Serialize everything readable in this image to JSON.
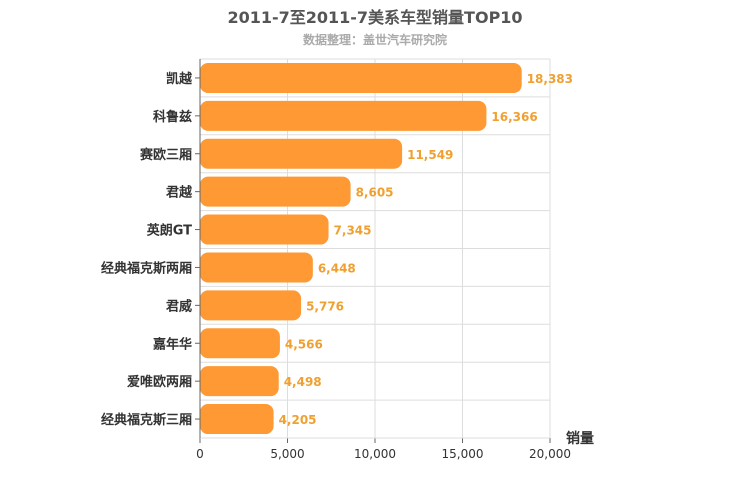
{
  "chart_data": {
    "type": "bar",
    "orientation": "horizontal",
    "title": "2011-7至2011-7美系车型销量TOP10",
    "subtitle": "数据整理：盖世汽车研究院",
    "categories": [
      "凯越",
      "科鲁兹",
      "赛欧三厢",
      "君越",
      "英朗GT",
      "经典福克斯两厢",
      "君威",
      "嘉年华",
      "爱唯欧两厢",
      "经典福克斯三厢"
    ],
    "values": [
      18383,
      16366,
      11549,
      8605,
      7345,
      6448,
      5776,
      4566,
      4498,
      4205
    ],
    "value_labels": [
      "18,383",
      "16,366",
      "11,549",
      "8,605",
      "7,345",
      "6,448",
      "5,776",
      "4,566",
      "4,498",
      "4,205"
    ],
    "xlabel": "销量",
    "ylabel": "",
    "xlim": [
      0,
      20000
    ],
    "ticks": [
      0,
      5000,
      10000,
      15000,
      20000
    ],
    "tick_labels": [
      "0",
      "5,000",
      "10,000",
      "15,000",
      "20,000"
    ],
    "grid": true,
    "bar_color": "#ff9933",
    "label_color": "#f0a030"
  }
}
